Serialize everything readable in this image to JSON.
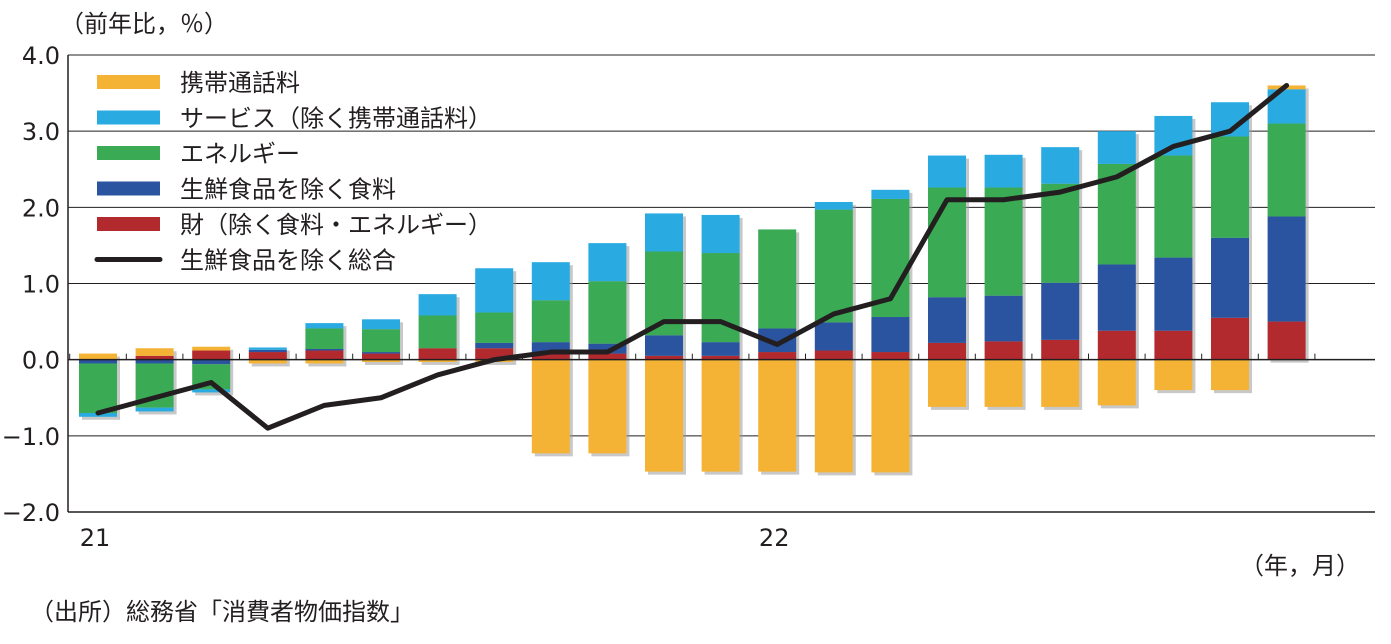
{
  "chart_data": {
    "type": "bar",
    "stacked": true,
    "title": "",
    "ylabel": "（前年比，％）",
    "xlabel": "（年，月）",
    "source": "（出所）総務省「消費者物価指数」",
    "ylim": [
      -2.0,
      4.0
    ],
    "yticks": [
      "4.0",
      "3.0",
      "2.0",
      "1.0",
      "0.0",
      "−1.0",
      "−2.0"
    ],
    "ytick_values": [
      4.0,
      3.0,
      2.0,
      1.0,
      0.0,
      -1.0,
      -2.0
    ],
    "x_tick_labels": [
      {
        "label": "21",
        "index": 0
      },
      {
        "label": "22",
        "index": 12
      }
    ],
    "months": [
      "2021-01",
      "2021-02",
      "2021-03",
      "2021-04",
      "2021-05",
      "2021-06",
      "2021-07",
      "2021-08",
      "2021-09",
      "2021-10",
      "2021-11",
      "2021-12",
      "2022-01",
      "2022-02",
      "2022-03",
      "2022-04",
      "2022-05",
      "2022-06",
      "2022-07",
      "2022-08",
      "2022-09",
      "2022-10"
    ],
    "grid": true,
    "legend_position": "top-left",
    "series": [
      {
        "name": "財（除く食料・エネルギー）",
        "color": "#b22a2e",
        "values": [
          0.0,
          0.05,
          0.12,
          0.1,
          0.12,
          0.08,
          0.15,
          0.15,
          0.1,
          0.08,
          0.05,
          0.05,
          0.1,
          0.12,
          0.1,
          0.22,
          0.24,
          0.26,
          0.38,
          0.38,
          0.55,
          0.5
        ]
      },
      {
        "name": "生鮮食品を除く食料",
        "color": "#2a54a0",
        "values": [
          -0.05,
          -0.05,
          -0.06,
          0.03,
          0.02,
          0.02,
          0.0,
          0.07,
          0.13,
          0.13,
          0.27,
          0.18,
          0.31,
          0.37,
          0.46,
          0.6,
          0.6,
          0.75,
          0.87,
          0.96,
          1.05,
          1.38
        ]
      },
      {
        "name": "エネルギー",
        "color": "#3aaa55",
        "values": [
          -0.65,
          -0.58,
          -0.33,
          0.0,
          0.27,
          0.3,
          0.43,
          0.4,
          0.55,
          0.82,
          1.1,
          1.17,
          1.3,
          1.48,
          1.55,
          1.44,
          1.42,
          1.3,
          1.32,
          1.34,
          1.33,
          1.22
        ]
      },
      {
        "name": "サービス（除く携帯通話料）",
        "color": "#29abe2",
        "values": [
          -0.05,
          -0.05,
          -0.04,
          0.03,
          0.07,
          0.13,
          0.28,
          0.58,
          0.5,
          0.5,
          0.5,
          0.5,
          0.0,
          0.1,
          0.12,
          0.42,
          0.43,
          0.48,
          0.43,
          0.52,
          0.45,
          0.45
        ]
      },
      {
        "name": "携帯通話料",
        "color": "#f5b335",
        "values": [
          0.08,
          0.1,
          0.05,
          -0.05,
          -0.05,
          -0.03,
          -0.03,
          -0.03,
          -1.23,
          -1.23,
          -1.47,
          -1.47,
          -1.47,
          -1.48,
          -1.48,
          -0.62,
          -0.62,
          -0.62,
          -0.6,
          -0.4,
          -0.4,
          0.05
        ]
      }
    ],
    "line": {
      "name": "生鮮食品を除く総合",
      "color": "#231f20",
      "values": [
        -0.7,
        -0.5,
        -0.3,
        -0.9,
        -0.6,
        -0.5,
        -0.2,
        0.0,
        0.1,
        0.1,
        0.5,
        0.5,
        0.2,
        0.6,
        0.8,
        2.1,
        2.1,
        2.2,
        2.4,
        2.8,
        3.0,
        3.6
      ]
    },
    "legend": [
      {
        "name": "携帯通話料",
        "color": "#f5b335",
        "kind": "bar"
      },
      {
        "name": "サービス（除く携帯通話料）",
        "color": "#29abe2",
        "kind": "bar"
      },
      {
        "name": "エネルギー",
        "color": "#3aaa55",
        "kind": "bar"
      },
      {
        "name": "生鮮食品を除く食料",
        "color": "#2a54a0",
        "kind": "bar"
      },
      {
        "name": "財（除く食料・エネルギー）",
        "color": "#b22a2e",
        "kind": "bar"
      },
      {
        "name": "生鮮食品を除く総合",
        "color": "#231f20",
        "kind": "line"
      }
    ]
  }
}
